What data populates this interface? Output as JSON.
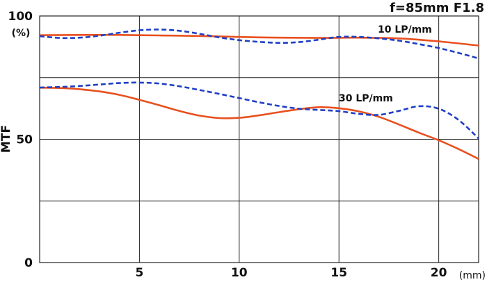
{
  "chart_data": {
    "type": "line",
    "title": "f=85mm F1.8",
    "xlabel": "",
    "x_unit": "(mm)",
    "ylabel": "MTF",
    "y_unit": "(%)",
    "xlim": [
      0,
      22.0
    ],
    "ylim": [
      0,
      100
    ],
    "x_ticks": [
      "5",
      "10",
      "15",
      "20"
    ],
    "y_ticks": [
      "100",
      "50",
      "0"
    ],
    "grid": true,
    "annotations": [
      "10 LP/mm",
      "30 LP/mm"
    ],
    "series": [
      {
        "group": "10 LP/mm",
        "style": "solid",
        "color": "#E8501E",
        "x": [
          0,
          2,
          4,
          6,
          8,
          10,
          12,
          14,
          16,
          18,
          20,
          22
        ],
        "y": [
          92.2,
          92.3,
          92.3,
          92.1,
          91.9,
          91.5,
          91.2,
          91.1,
          91.2,
          90.9,
          89.7,
          88.0
        ]
      },
      {
        "group": "10 LP/mm",
        "style": "dashed",
        "color": "#1F3FC4",
        "x": [
          0,
          1,
          2,
          3,
          4,
          5,
          6,
          7,
          8,
          9,
          10,
          11,
          12,
          13,
          14,
          15,
          16,
          17,
          18,
          19,
          20,
          21,
          22
        ],
        "y": [
          91.8,
          91.1,
          91.2,
          92.0,
          93.2,
          94.2,
          94.5,
          94.0,
          92.8,
          91.3,
          90.2,
          89.5,
          89.1,
          89.4,
          90.4,
          91.5,
          91.5,
          90.9,
          90.0,
          88.6,
          87.0,
          85.0,
          82.8
        ]
      },
      {
        "group": "30 LP/mm",
        "style": "solid",
        "color": "#E8501E",
        "x": [
          0,
          1,
          2,
          3,
          4,
          5,
          6,
          7,
          8,
          9,
          10,
          11,
          12,
          13,
          14,
          15,
          16,
          17,
          18,
          19,
          20,
          21,
          22
        ],
        "y": [
          70.9,
          70.8,
          70.3,
          69.4,
          68.0,
          66.0,
          63.8,
          61.5,
          59.6,
          58.6,
          58.7,
          59.7,
          61.0,
          62.2,
          63.0,
          62.6,
          61.3,
          59.1,
          56.0,
          52.7,
          49.6,
          46.0,
          42.0
        ]
      },
      {
        "group": "30 LP/mm",
        "style": "dashed",
        "color": "#1F3FC4",
        "x": [
          0,
          1,
          2,
          3,
          4,
          5,
          6,
          7,
          8,
          9,
          10,
          11,
          12,
          13,
          14,
          15,
          16,
          17,
          18,
          19,
          20,
          21,
          22
        ],
        "y": [
          71.0,
          71.2,
          71.6,
          72.2,
          72.8,
          73.0,
          72.6,
          71.5,
          70.0,
          68.4,
          66.7,
          65.0,
          63.5,
          62.4,
          61.9,
          61.4,
          60.3,
          59.9,
          61.5,
          63.4,
          62.4,
          57.8,
          50.3
        ]
      }
    ]
  }
}
